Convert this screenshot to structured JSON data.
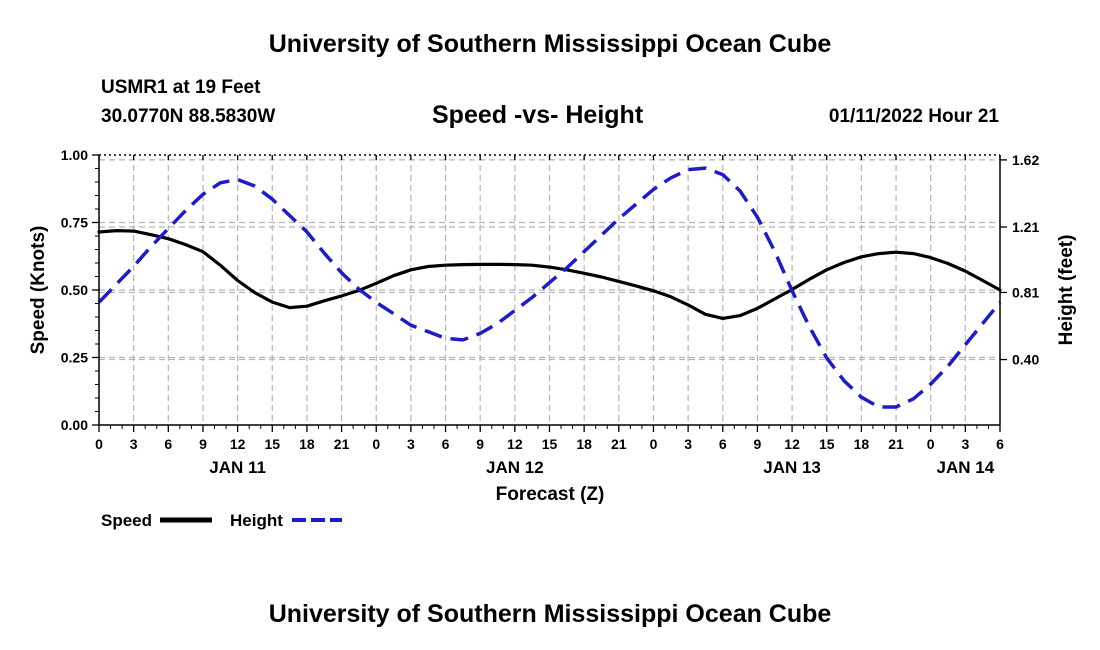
{
  "header": {
    "title": "University of Southern Mississippi Ocean Cube",
    "station": "USMR1 at 19 Feet",
    "coordinates": "30.0770N  88.5830W",
    "issued": "01/11/2022 Hour 21"
  },
  "footer": {
    "title": "University of Southern Mississippi Ocean Cube"
  },
  "chart_data": {
    "type": "line",
    "title": "Speed -vs- Height",
    "xlabel": "Forecast (Z)",
    "ylabel": "Speed (Knots)",
    "y2label": "Height (feet)",
    "x_unit": "forecast hours from Jan 11 00Z",
    "xlim": [
      0,
      78
    ],
    "ylim": [
      0,
      1
    ],
    "y2lim": [
      0.0,
      1.65
    ],
    "grid": true,
    "xticks": [
      0,
      3,
      6,
      9,
      12,
      15,
      18,
      21,
      24,
      27,
      30,
      33,
      36,
      39,
      42,
      45,
      48,
      51,
      54,
      57,
      60,
      63,
      66,
      69,
      72,
      75,
      78
    ],
    "xtick_labels": [
      "0",
      "3",
      "6",
      "9",
      "12",
      "15",
      "18",
      "21",
      "0",
      "3",
      "6",
      "9",
      "12",
      "15",
      "18",
      "21",
      "0",
      "3",
      "6",
      "9",
      "12",
      "15",
      "18",
      "21",
      "0",
      "3",
      "6"
    ],
    "date_labels": [
      {
        "x": 12,
        "label": "JAN 11"
      },
      {
        "x": 36,
        "label": "JAN 12"
      },
      {
        "x": 60,
        "label": "JAN 13"
      },
      {
        "x": 75,
        "label": "JAN 14"
      }
    ],
    "yticks": [
      0,
      0.25,
      0.5,
      0.75,
      1.0
    ],
    "ytick_labels": [
      "0.00",
      "0.25",
      "0.50",
      "0.75",
      "1.00"
    ],
    "y2ticks": [
      0.4,
      0.81,
      1.21,
      1.62
    ],
    "y2tick_labels": [
      "0.40",
      "0.81",
      "1.21",
      "1.62"
    ],
    "series": [
      {
        "name": "Speed",
        "axis": "left",
        "color": "#000000",
        "dash": "solid",
        "x": [
          0,
          1.5,
          3,
          4.5,
          6,
          7.5,
          9,
          10.5,
          12,
          13.5,
          15,
          16.5,
          18,
          19.5,
          21,
          22.5,
          24,
          25.5,
          27,
          28.5,
          30,
          31.5,
          33,
          34.5,
          36,
          37.5,
          39,
          40.5,
          42,
          43.5,
          45,
          46.5,
          48,
          49.5,
          51,
          52.5,
          54,
          55.5,
          57,
          58.5,
          60,
          61.5,
          63,
          64.5,
          66,
          67.5,
          69,
          70.5,
          72,
          73.5,
          75,
          76.5,
          78
        ],
        "values": [
          0.715,
          0.72,
          0.718,
          0.705,
          0.69,
          0.668,
          0.642,
          0.592,
          0.535,
          0.49,
          0.455,
          0.435,
          0.44,
          0.46,
          0.478,
          0.498,
          0.525,
          0.553,
          0.575,
          0.587,
          0.592,
          0.594,
          0.595,
          0.595,
          0.594,
          0.592,
          0.585,
          0.575,
          0.562,
          0.548,
          0.532,
          0.515,
          0.497,
          0.475,
          0.445,
          0.41,
          0.395,
          0.405,
          0.432,
          0.467,
          0.502,
          0.54,
          0.575,
          0.602,
          0.623,
          0.635,
          0.64,
          0.635,
          0.62,
          0.598,
          0.57,
          0.535,
          0.5
        ]
      },
      {
        "name": "Height",
        "axis": "right",
        "color": "#1c1ccc",
        "dash": "dashed",
        "x": [
          0,
          1.5,
          3,
          4.5,
          6,
          7.5,
          9,
          10.5,
          12,
          13.5,
          15,
          16.5,
          18,
          19.5,
          21,
          22.5,
          24,
          25.5,
          27,
          28.5,
          30,
          31.5,
          33,
          34.5,
          36,
          37.5,
          39,
          40.5,
          42,
          43.5,
          45,
          46.5,
          48,
          49.5,
          51,
          52.5,
          54,
          55.5,
          57,
          58.5,
          60,
          61.5,
          63,
          64.5,
          66,
          67.5,
          69,
          70.5,
          72,
          73.5,
          75,
          76.5,
          78
        ],
        "values": [
          0.75,
          0.86,
          0.97,
          1.09,
          1.2,
          1.31,
          1.41,
          1.48,
          1.5,
          1.46,
          1.38,
          1.28,
          1.18,
          1.05,
          0.93,
          0.83,
          0.75,
          0.68,
          0.61,
          0.57,
          0.53,
          0.52,
          0.56,
          0.62,
          0.7,
          0.78,
          0.87,
          0.96,
          1.06,
          1.16,
          1.26,
          1.35,
          1.44,
          1.51,
          1.56,
          1.57,
          1.53,
          1.43,
          1.27,
          1.06,
          0.82,
          0.6,
          0.41,
          0.27,
          0.17,
          0.11,
          0.11,
          0.16,
          0.25,
          0.36,
          0.49,
          0.62,
          0.75
        ]
      }
    ],
    "legend": {
      "position": "bottom-left",
      "entries": [
        {
          "label": "Speed",
          "series": 0
        },
        {
          "label": "Height",
          "series": 1
        }
      ]
    }
  }
}
